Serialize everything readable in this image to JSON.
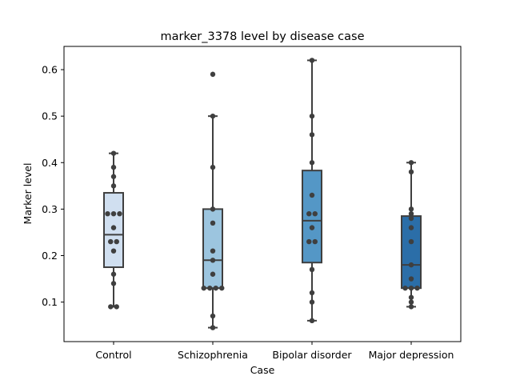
{
  "chart_data": {
    "type": "box",
    "title": "marker_3378 level by disease case",
    "xlabel": "Case",
    "ylabel": "Marker level",
    "ylim": [
      0.015,
      0.65
    ],
    "yticks": [
      0.1,
      0.2,
      0.3,
      0.4,
      0.5,
      0.6
    ],
    "ytick_labels": [
      "0.1",
      "0.2",
      "0.3",
      "0.4",
      "0.5",
      "0.6"
    ],
    "grid": false,
    "legend": "none",
    "categories": [
      "Control",
      "Schizophrenia",
      "Bipolar disorder",
      "Major depression"
    ],
    "colors": [
      "#d0dff0",
      "#9cc5df",
      "#5497c6",
      "#2b6ea8"
    ],
    "boxes": [
      {
        "q1": 0.175,
        "median": 0.245,
        "q3": 0.335,
        "whisker_low": 0.09,
        "whisker_high": 0.42,
        "outliers": []
      },
      {
        "q1": 0.13,
        "median": 0.19,
        "q3": 0.3,
        "whisker_low": 0.045,
        "whisker_high": 0.5,
        "outliers": [
          0.59
        ]
      },
      {
        "q1": 0.185,
        "median": 0.275,
        "q3": 0.383,
        "whisker_low": 0.06,
        "whisker_high": 0.62,
        "outliers": []
      },
      {
        "q1": 0.13,
        "median": 0.18,
        "q3": 0.285,
        "whisker_low": 0.09,
        "whisker_high": 0.4,
        "outliers": []
      }
    ],
    "points": [
      [
        0.42,
        0.39,
        0.37,
        0.35,
        0.29,
        0.29,
        0.29,
        0.26,
        0.23,
        0.23,
        0.21,
        0.16,
        0.14,
        0.09,
        0.09
      ],
      [
        0.59,
        0.5,
        0.39,
        0.3,
        0.27,
        0.21,
        0.19,
        0.16,
        0.13,
        0.13,
        0.13,
        0.13,
        0.07,
        0.045
      ],
      [
        0.62,
        0.5,
        0.46,
        0.4,
        0.33,
        0.29,
        0.29,
        0.26,
        0.23,
        0.23,
        0.17,
        0.12,
        0.1,
        0.06
      ],
      [
        0.4,
        0.38,
        0.3,
        0.29,
        0.28,
        0.26,
        0.23,
        0.18,
        0.15,
        0.13,
        0.13,
        0.13,
        0.11,
        0.1,
        0.09
      ]
    ]
  }
}
